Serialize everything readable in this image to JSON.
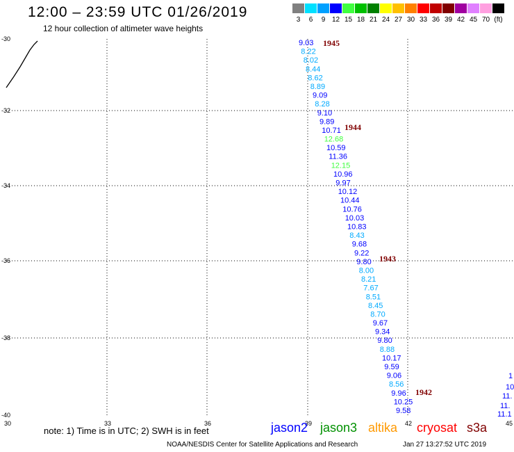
{
  "header": {
    "title": "12:00 – 23:59 UTC 01/26/2019",
    "subtitle": "12 hour collection of altimeter wave heights"
  },
  "legend": {
    "swatches": [
      {
        "color": "#808080",
        "label": "3"
      },
      {
        "color": "#00e0ff",
        "label": "6"
      },
      {
        "color": "#00a0ff",
        "label": "9"
      },
      {
        "color": "#0000ff",
        "label": "12"
      },
      {
        "color": "#40ff40",
        "label": "15"
      },
      {
        "color": "#00c000",
        "label": "18"
      },
      {
        "color": "#008000",
        "label": "21"
      },
      {
        "color": "#ffff00",
        "label": "24"
      },
      {
        "color": "#ffc000",
        "label": "27"
      },
      {
        "color": "#ff8000",
        "label": "30"
      },
      {
        "color": "#ff0000",
        "label": "33"
      },
      {
        "color": "#c00000",
        "label": "36"
      },
      {
        "color": "#800000",
        "label": "39"
      },
      {
        "color": "#a000a0",
        "label": "42"
      },
      {
        "color": "#e080ff",
        "label": "45"
      },
      {
        "color": "#ffa0e0",
        "label": "70"
      },
      {
        "color": "#000000",
        "label": "(ft)"
      }
    ]
  },
  "axes": {
    "lon_labels": [
      "30",
      "33",
      "36",
      "39",
      "42",
      "45"
    ],
    "lat_labels": [
      "-30",
      "-32",
      "-34",
      "-36",
      "-38",
      "-40"
    ]
  },
  "track": {
    "points": [
      {
        "v": "9.03",
        "c": "#0000ff"
      },
      {
        "v": "8.22",
        "c": "#00aaff"
      },
      {
        "v": "8.02",
        "c": "#00aaff"
      },
      {
        "v": "8.44",
        "c": "#00aaff"
      },
      {
        "v": "8.62",
        "c": "#00aaff"
      },
      {
        "v": "8.89",
        "c": "#00aaff"
      },
      {
        "v": "9.09",
        "c": "#0000ff"
      },
      {
        "v": "8.28",
        "c": "#00aaff"
      },
      {
        "v": "9.10",
        "c": "#0000ff"
      },
      {
        "v": "9.89",
        "c": "#0000ff"
      },
      {
        "v": "10.71",
        "c": "#0000ff"
      },
      {
        "v": "12.68",
        "c": "#40ff40"
      },
      {
        "v": "10.59",
        "c": "#0000ff"
      },
      {
        "v": "11.36",
        "c": "#0000ff"
      },
      {
        "v": "12.15",
        "c": "#40ff40"
      },
      {
        "v": "10.96",
        "c": "#0000ff"
      },
      {
        "v": "9.97",
        "c": "#0000ff"
      },
      {
        "v": "10.12",
        "c": "#0000ff"
      },
      {
        "v": "10.44",
        "c": "#0000ff"
      },
      {
        "v": "10.76",
        "c": "#0000ff"
      },
      {
        "v": "10.03",
        "c": "#0000ff"
      },
      {
        "v": "10.83",
        "c": "#0000ff"
      },
      {
        "v": "8.43",
        "c": "#00aaff"
      },
      {
        "v": "9.68",
        "c": "#0000ff"
      },
      {
        "v": "9.22",
        "c": "#0000ff"
      },
      {
        "v": "9.80",
        "c": "#0000ff"
      },
      {
        "v": "8.00",
        "c": "#00aaff"
      },
      {
        "v": "8.21",
        "c": "#00aaff"
      },
      {
        "v": "7.67",
        "c": "#00aaff"
      },
      {
        "v": "8.51",
        "c": "#00aaff"
      },
      {
        "v": "8.45",
        "c": "#00aaff"
      },
      {
        "v": "8.70",
        "c": "#00aaff"
      },
      {
        "v": "9.67",
        "c": "#0000ff"
      },
      {
        "v": "9.34",
        "c": "#0000ff"
      },
      {
        "v": "9.80",
        "c": "#0000ff"
      },
      {
        "v": "8.88",
        "c": "#00aaff"
      },
      {
        "v": "10.17",
        "c": "#0000ff"
      },
      {
        "v": "9.59",
        "c": "#0000ff"
      },
      {
        "v": "9.06",
        "c": "#0000ff"
      },
      {
        "v": "8.56",
        "c": "#00aaff"
      },
      {
        "v": "9.96",
        "c": "#0000ff"
      },
      {
        "v": "10.25",
        "c": "#0000ff"
      },
      {
        "v": "9.58",
        "c": "#0000ff"
      }
    ],
    "time_labels": [
      "1945",
      "1944",
      "1943",
      "1942"
    ],
    "time_color": "#800000"
  },
  "edge_track": {
    "points": [
      "1",
      "10",
      "11.",
      "11.",
      "11.1"
    ],
    "color": "#0000ff"
  },
  "footer": {
    "note": "note: 1) Time is in UTC; 2) SWH is in feet",
    "satellites": [
      {
        "name": "jason2",
        "color": "#0000ff"
      },
      {
        "name": "jason3",
        "color": "#009000"
      },
      {
        "name": "altika",
        "color": "#ff9900"
      },
      {
        "name": "cryosat",
        "color": "#ff0000"
      },
      {
        "name": "s3a",
        "color": "#800000"
      }
    ],
    "credit": "NOAA/NESDIS Center for Satellite Applications and Research",
    "timestamp": "Jan 27 13:27:52 UTC 2019"
  }
}
